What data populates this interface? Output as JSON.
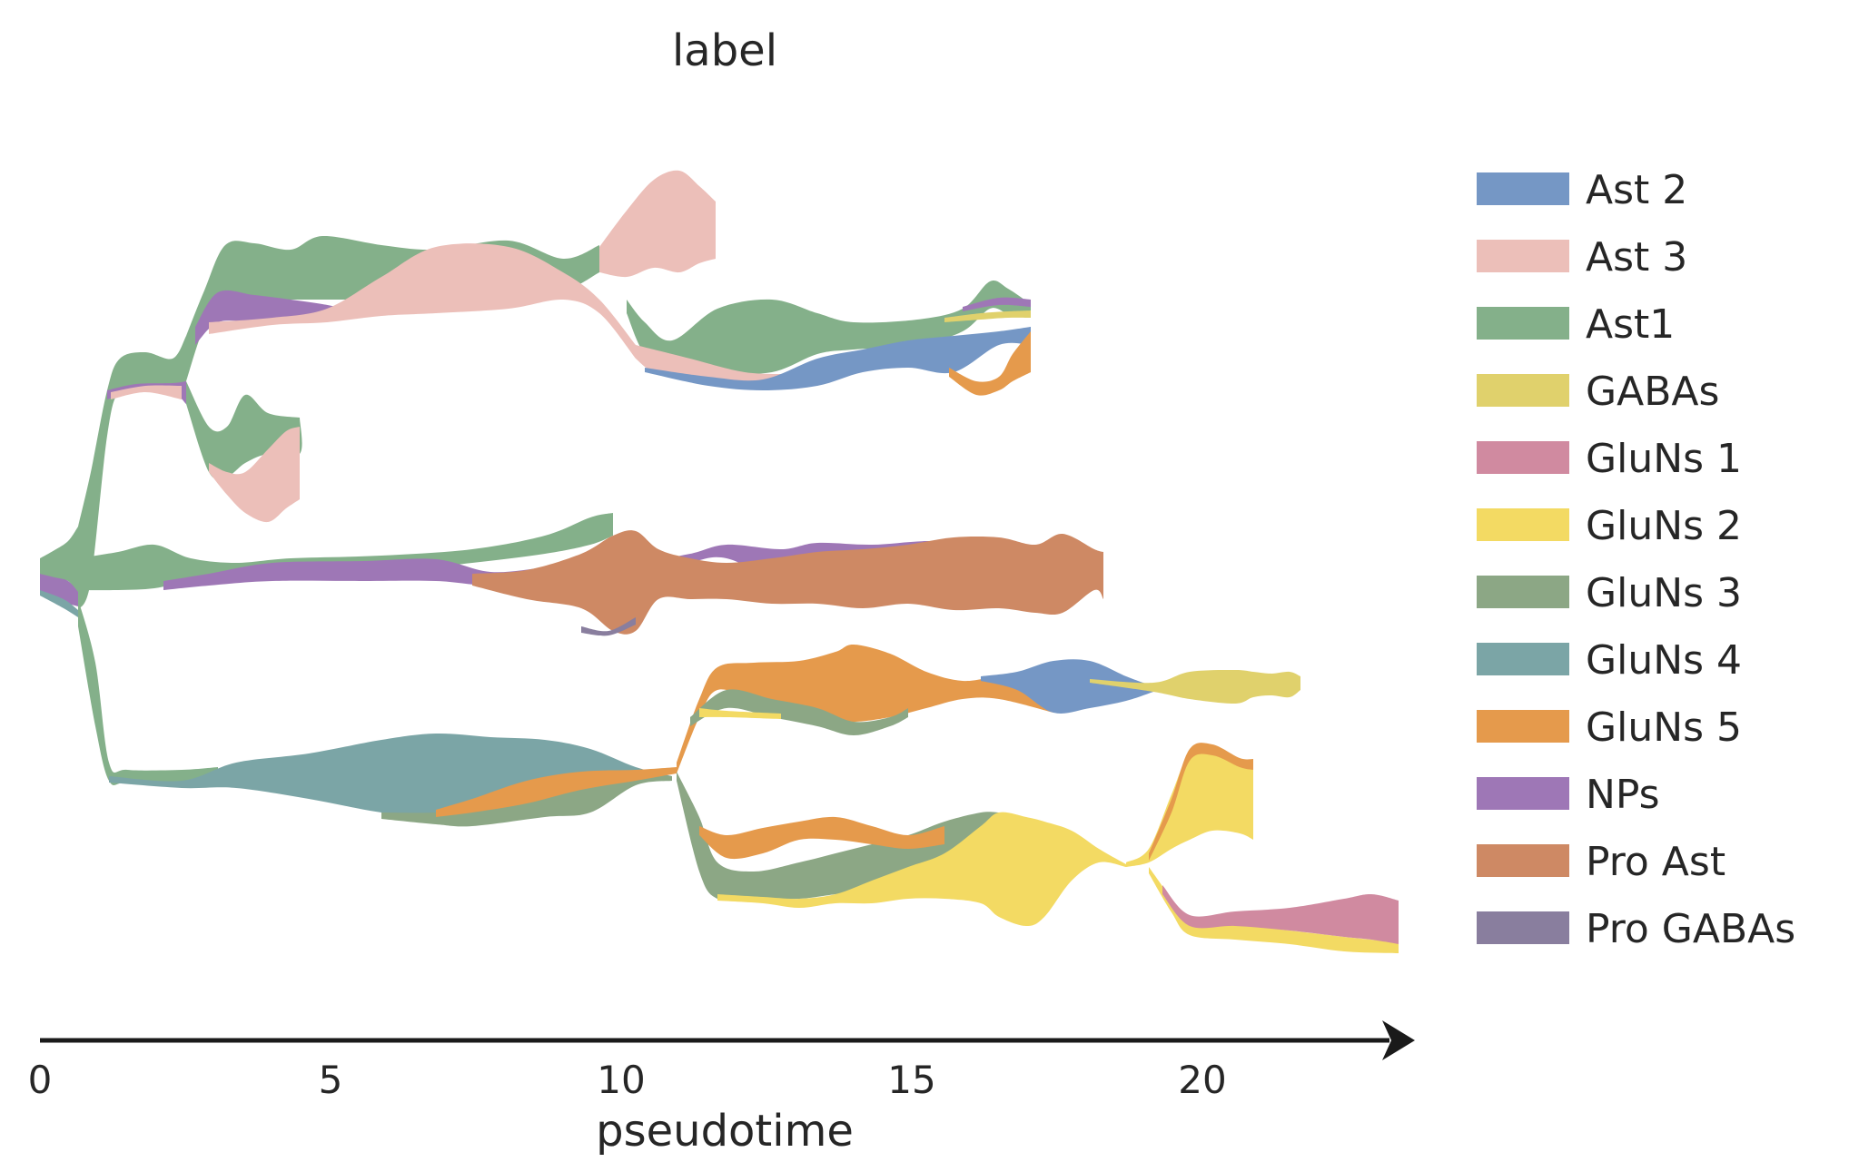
{
  "chart_data": {
    "type": "area",
    "subtype": "tree stream graph",
    "title": "label",
    "xlabel": "pseudotime",
    "ylabel": "",
    "xlim": [
      0,
      23.6
    ],
    "xticks": [
      "0",
      "5",
      "10",
      "15",
      "20"
    ],
    "xtick_values": [
      0,
      5,
      10,
      15,
      20
    ],
    "legend_position": "right",
    "series": [
      {
        "name": "Ast 2",
        "color": "#7597c5"
      },
      {
        "name": "Ast 3",
        "color": "#ecbfb9"
      },
      {
        "name": "Ast1",
        "color": "#84b08a"
      },
      {
        "name": "GABAs",
        "color": "#e0d16c"
      },
      {
        "name": "GluNs 1",
        "color": "#d08aa0"
      },
      {
        "name": "GluNs 2",
        "color": "#f3da63"
      },
      {
        "name": "GluNs 3",
        "color": "#8ca785"
      },
      {
        "name": "GluNs 4",
        "color": "#7ba5a6"
      },
      {
        "name": "GluNs 5",
        "color": "#e59a4c"
      },
      {
        "name": "NPs",
        "color": "#9e77b6"
      },
      {
        "name": "Pro Ast",
        "color": "#ce8964"
      },
      {
        "name": "Pro GABAs",
        "color": "#897e9e"
      }
    ],
    "branches": [
      {
        "name": "root",
        "x_range": [
          0,
          0.6
        ],
        "series": [
          "Ast1",
          "NPs",
          "GluNs 4"
        ]
      },
      {
        "name": "upper-stem",
        "x_range": [
          0.6,
          2.5
        ],
        "series": [
          "Ast1",
          "NPs",
          "Ast 3"
        ]
      },
      {
        "name": "short-ast3-branch",
        "x_range": [
          2.5,
          4.4
        ],
        "series": [
          "Ast1",
          "Ast 3"
        ]
      },
      {
        "name": "upper-ast1-branch",
        "x_range": [
          2.5,
          10
        ],
        "series": [
          "Ast1",
          "NPs",
          "Ast 3"
        ]
      },
      {
        "name": "ast3-tip",
        "x_range": [
          9.5,
          11.6
        ],
        "series": [
          "Ast 3"
        ]
      },
      {
        "name": "ast2-branch",
        "x_range": [
          10,
          17
        ],
        "series": [
          "Ast1",
          "Ast 2",
          "Ast 3",
          "GluNs 5",
          "GABAs",
          "NPs"
        ]
      },
      {
        "name": "middle-pro-ast-branch",
        "x_range": [
          0.6,
          18.5
        ],
        "series": [
          "Ast1",
          "NPs",
          "Pro Ast"
        ]
      },
      {
        "name": "lower-glun4-stem",
        "x_range": [
          0.6,
          11
        ],
        "series": [
          "Ast1",
          "GluNs 4",
          "GluNs 3",
          "GluNs 5"
        ]
      },
      {
        "name": "glun5-ast2-gaba-branch",
        "x_range": [
          11,
          22
        ],
        "series": [
          "GluNs 5",
          "GluNs 3",
          "Ast 2",
          "GABAs"
        ]
      },
      {
        "name": "glun3-glun2-branch",
        "x_range": [
          11,
          19
        ],
        "series": [
          "GluNs 5",
          "GluNs 3",
          "GluNs 2"
        ]
      },
      {
        "name": "glun2-tip",
        "x_range": [
          19,
          21
        ],
        "series": [
          "GluNs 2",
          "GluNs 5"
        ]
      },
      {
        "name": "glun1-tip",
        "x_range": [
          19,
          23.6
        ],
        "series": [
          "GluNs 1",
          "GluNs 2"
        ]
      }
    ]
  }
}
